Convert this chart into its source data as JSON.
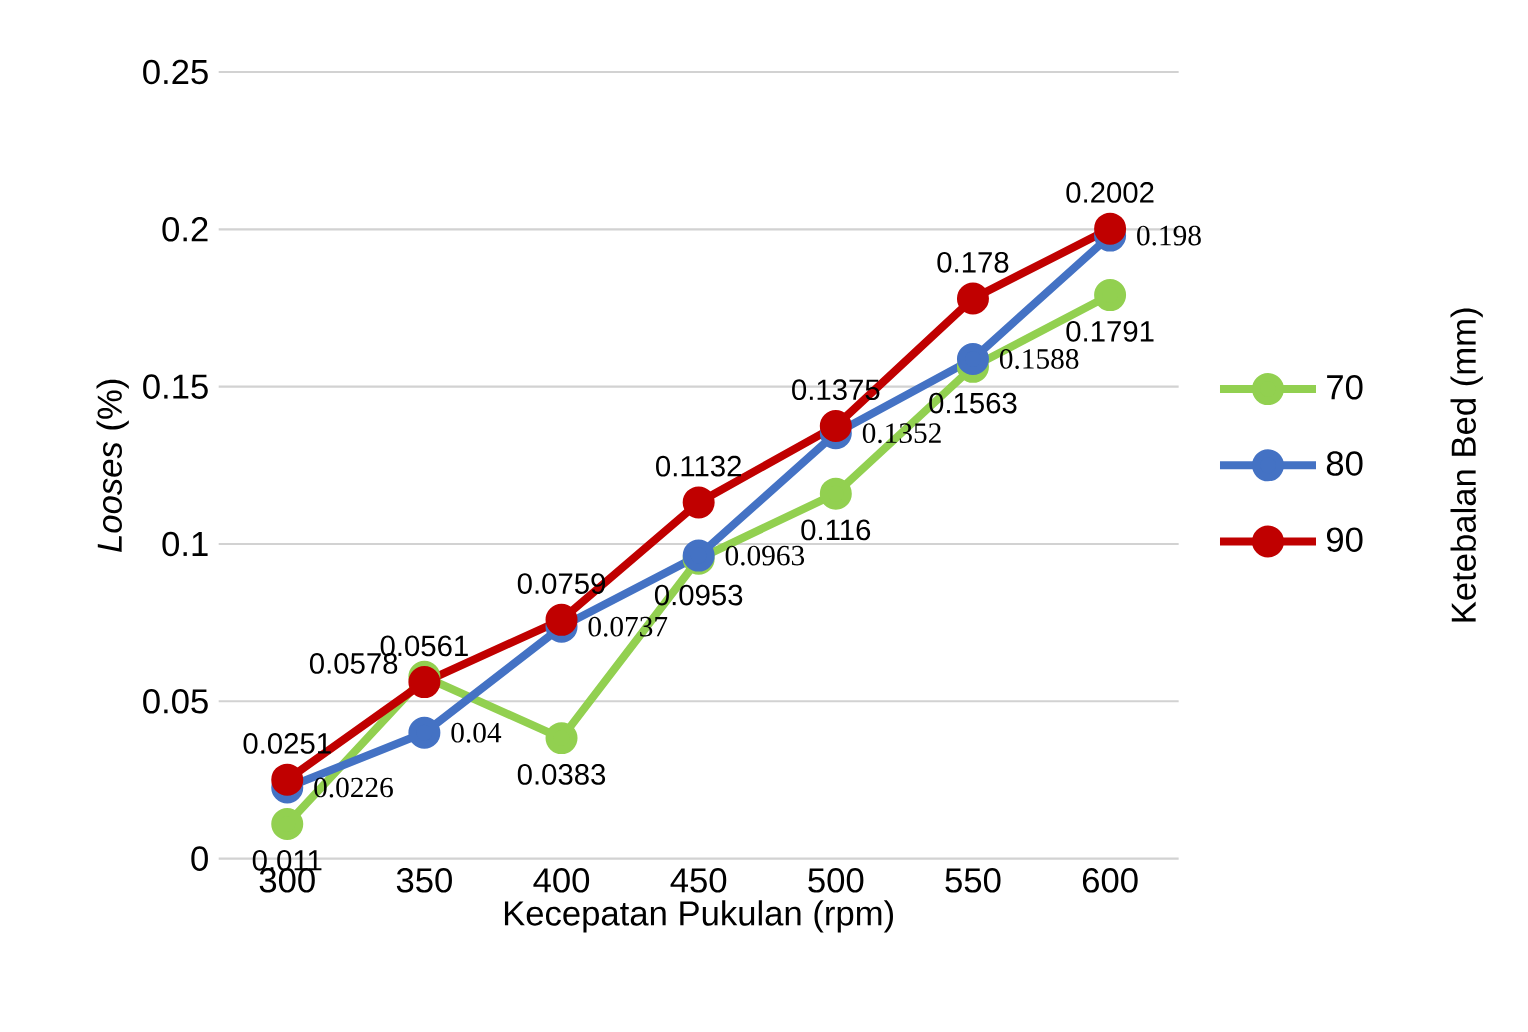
{
  "chart_data": {
    "type": "line",
    "xlabel": "Kecepatan Pukulan (rpm)",
    "ylabel": "*Looses* (%)",
    "legend_title": "Ketebalan Bed (mm)",
    "categories": [
      "300",
      "350",
      "400",
      "450",
      "500",
      "550",
      "600"
    ],
    "series": [
      {
        "name": "70",
        "color": "#92d050",
        "values": [
          0.011,
          0.0578,
          0.0383,
          0.0953,
          0.116,
          0.1563,
          0.1791
        ]
      },
      {
        "name": "80",
        "color": "#4472c4",
        "values": [
          0.0226,
          0.04,
          0.0737,
          0.0963,
          0.1352,
          0.1588,
          0.198
        ]
      },
      {
        "name": "90",
        "color": "#c00000",
        "values": [
          0.0251,
          0.0561,
          0.0759,
          0.1132,
          0.1375,
          0.178,
          0.2002
        ]
      }
    ],
    "ylim": [
      0,
      0.25
    ],
    "yticks": [
      0,
      0.05,
      0.1,
      0.15,
      0.2,
      0.25
    ],
    "grid": "y",
    "legend": "right",
    "marker": "circle",
    "line_style": "solid",
    "data_labels": true
  }
}
